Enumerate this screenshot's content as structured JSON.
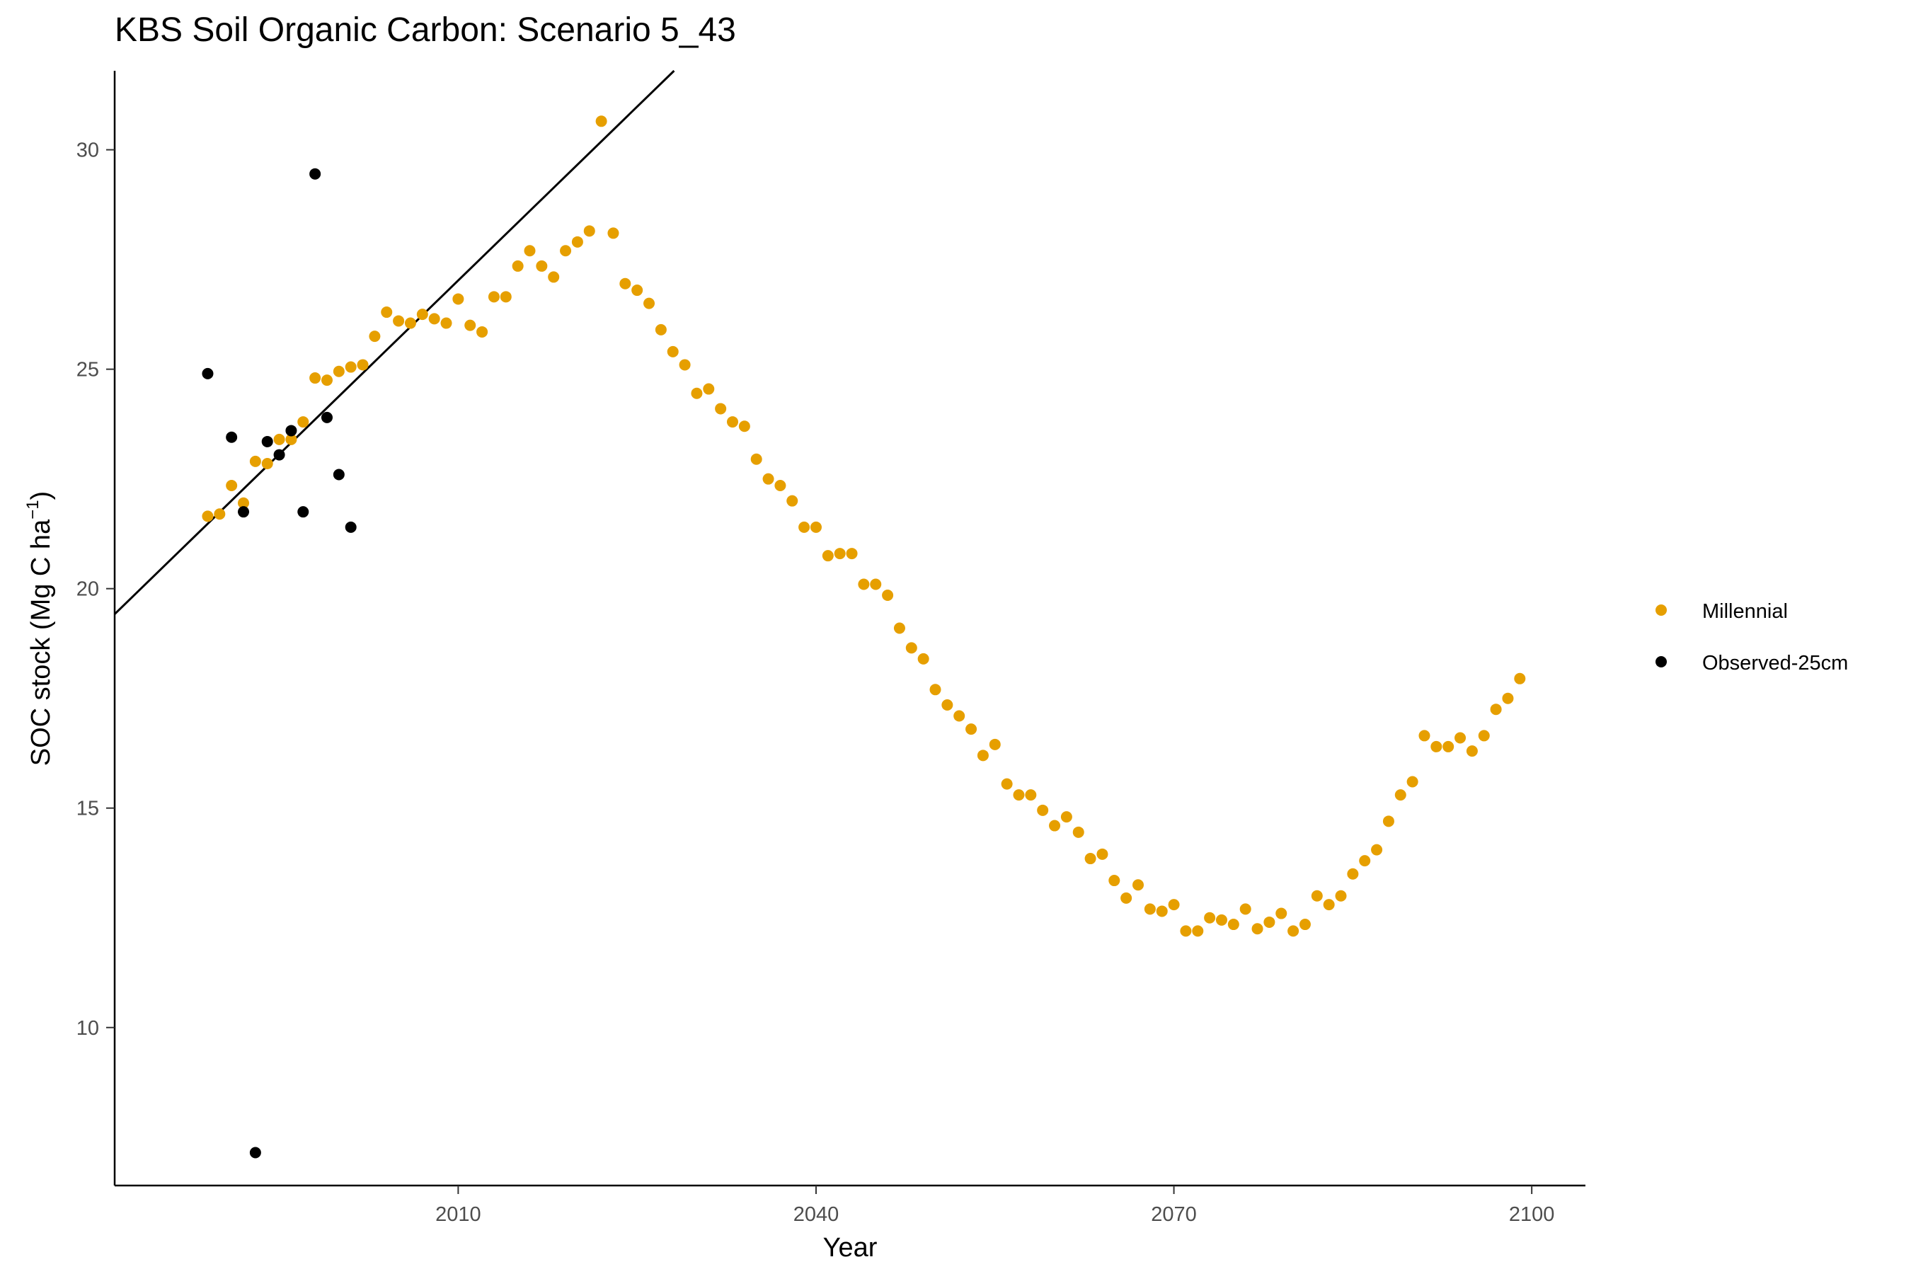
{
  "chart_data": {
    "type": "scatter",
    "title": "KBS Soil Organic Carbon: Scenario  5_43",
    "xlabel": "Year",
    "ylabel_main": "SOC stock (Mg C ha",
    "ylabel_sup": "−1",
    "ylabel_close": ")",
    "xlim": [
      1981.2,
      2104.5
    ],
    "ylim": [
      6.4,
      31.8
    ],
    "xticks": [
      2010,
      2040,
      2070,
      2100
    ],
    "yticks": [
      10,
      15,
      20,
      25,
      30
    ],
    "grid": false,
    "legend_position": "right",
    "colors": {
      "Millennial": "#E69F00",
      "Observed-25cm": "#000000",
      "trend_line": "#000000"
    },
    "series": [
      {
        "name": "Millennial",
        "x": [
          1989,
          1990,
          1991,
          1992,
          1993,
          1994,
          1995,
          1996,
          1997,
          1998,
          1999,
          2000,
          2001,
          2002,
          2003,
          2004,
          2005,
          2006,
          2007,
          2008,
          2009,
          2010,
          2011,
          2012,
          2013,
          2014,
          2015,
          2016,
          2017,
          2018,
          2019,
          2020,
          2021,
          2022,
          2023,
          2024,
          2025,
          2026,
          2027,
          2028,
          2029,
          2030,
          2031,
          2032,
          2033,
          2034,
          2035,
          2036,
          2037,
          2038,
          2039,
          2040,
          2041,
          2042,
          2043,
          2044,
          2045,
          2046,
          2047,
          2048,
          2049,
          2050,
          2051,
          2052,
          2053,
          2054,
          2055,
          2056,
          2057,
          2058,
          2059,
          2060,
          2061,
          2062,
          2063,
          2064,
          2065,
          2066,
          2067,
          2068,
          2069,
          2070,
          2071,
          2072,
          2073,
          2074,
          2075,
          2076,
          2077,
          2078,
          2079,
          2080,
          2081,
          2082,
          2083,
          2084,
          2085,
          2086,
          2087,
          2088,
          2089,
          2090,
          2091,
          2092,
          2093,
          2094,
          2095,
          2096,
          2097,
          2098,
          2099
        ],
        "y": [
          21.65,
          21.7,
          22.35,
          21.95,
          22.9,
          22.85,
          23.4,
          23.4,
          23.8,
          24.8,
          24.75,
          24.95,
          25.05,
          25.1,
          25.75,
          26.3,
          26.1,
          26.05,
          26.25,
          26.15,
          26.05,
          26.6,
          26.0,
          25.85,
          26.65,
          26.65,
          27.35,
          27.7,
          27.35,
          27.1,
          27.7,
          27.9,
          28.15,
          30.65,
          28.1,
          26.95,
          26.8,
          26.5,
          25.9,
          25.4,
          25.1,
          24.45,
          24.55,
          24.1,
          23.8,
          23.7,
          22.95,
          22.5,
          22.35,
          22.0,
          21.4,
          21.4,
          20.75,
          20.8,
          20.8,
          20.1,
          20.1,
          19.85,
          19.1,
          18.65,
          18.4,
          17.7,
          17.35,
          17.1,
          16.8,
          16.2,
          16.45,
          15.55,
          15.3,
          15.3,
          14.95,
          14.6,
          14.8,
          14.45,
          13.85,
          13.95,
          13.35,
          12.95,
          13.25,
          12.7,
          12.65,
          12.8,
          12.2,
          12.2,
          12.5,
          12.45,
          12.35,
          12.7,
          12.25,
          12.4,
          12.6,
          12.2,
          12.35,
          13.0,
          12.8,
          13.0,
          13.5,
          13.8,
          14.05,
          14.7,
          15.3,
          15.6,
          16.65,
          16.4,
          16.4,
          16.6,
          16.3,
          16.65,
          17.25,
          17.5,
          17.95
        ]
      },
      {
        "name": "Observed-25cm",
        "x": [
          1989,
          1991,
          1992,
          1993,
          1994,
          1995,
          1996,
          1997,
          1998,
          1999,
          2000,
          2001
        ],
        "y": [
          24.9,
          23.45,
          21.75,
          7.15,
          23.35,
          23.05,
          23.6,
          21.75,
          29.45,
          23.9,
          22.6,
          21.4
        ]
      }
    ],
    "trend_line": {
      "x": [
        1981.2,
        2028.1
      ],
      "y": [
        19.42,
        31.8
      ]
    }
  }
}
